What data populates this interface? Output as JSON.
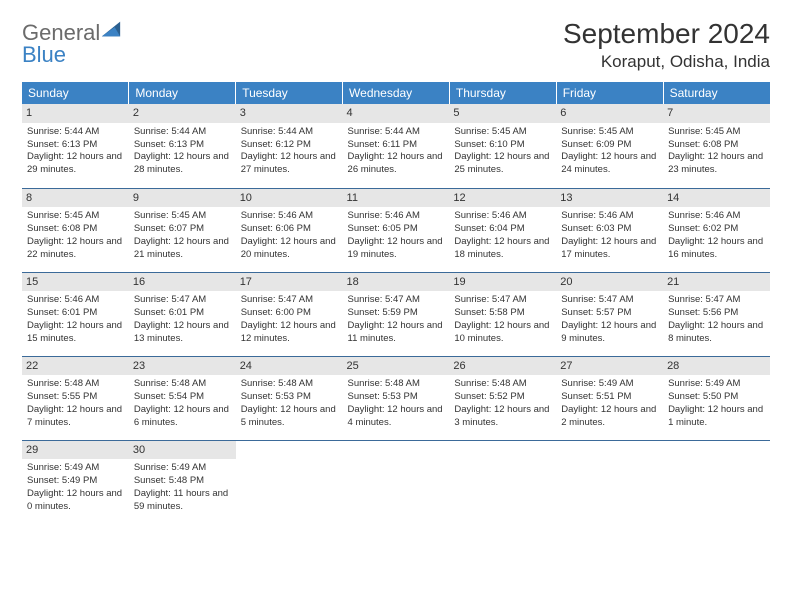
{
  "logo": {
    "word1": "General",
    "word2": "Blue"
  },
  "title": "September 2024",
  "location": "Koraput, Odisha, India",
  "colors": {
    "header_bg": "#3b82c4",
    "header_text": "#ffffff",
    "daynum_bg": "#e6e6e6",
    "border": "#3b6a99",
    "logo_gray": "#6b6b6b",
    "logo_blue": "#3b82c4"
  },
  "daysOfWeek": [
    "Sunday",
    "Monday",
    "Tuesday",
    "Wednesday",
    "Thursday",
    "Friday",
    "Saturday"
  ],
  "days": [
    {
      "n": "1",
      "sunrise": "5:44 AM",
      "sunset": "6:13 PM",
      "dl": "12 hours and 29 minutes."
    },
    {
      "n": "2",
      "sunrise": "5:44 AM",
      "sunset": "6:13 PM",
      "dl": "12 hours and 28 minutes."
    },
    {
      "n": "3",
      "sunrise": "5:44 AM",
      "sunset": "6:12 PM",
      "dl": "12 hours and 27 minutes."
    },
    {
      "n": "4",
      "sunrise": "5:44 AM",
      "sunset": "6:11 PM",
      "dl": "12 hours and 26 minutes."
    },
    {
      "n": "5",
      "sunrise": "5:45 AM",
      "sunset": "6:10 PM",
      "dl": "12 hours and 25 minutes."
    },
    {
      "n": "6",
      "sunrise": "5:45 AM",
      "sunset": "6:09 PM",
      "dl": "12 hours and 24 minutes."
    },
    {
      "n": "7",
      "sunrise": "5:45 AM",
      "sunset": "6:08 PM",
      "dl": "12 hours and 23 minutes."
    },
    {
      "n": "8",
      "sunrise": "5:45 AM",
      "sunset": "6:08 PM",
      "dl": "12 hours and 22 minutes."
    },
    {
      "n": "9",
      "sunrise": "5:45 AM",
      "sunset": "6:07 PM",
      "dl": "12 hours and 21 minutes."
    },
    {
      "n": "10",
      "sunrise": "5:46 AM",
      "sunset": "6:06 PM",
      "dl": "12 hours and 20 minutes."
    },
    {
      "n": "11",
      "sunrise": "5:46 AM",
      "sunset": "6:05 PM",
      "dl": "12 hours and 19 minutes."
    },
    {
      "n": "12",
      "sunrise": "5:46 AM",
      "sunset": "6:04 PM",
      "dl": "12 hours and 18 minutes."
    },
    {
      "n": "13",
      "sunrise": "5:46 AM",
      "sunset": "6:03 PM",
      "dl": "12 hours and 17 minutes."
    },
    {
      "n": "14",
      "sunrise": "5:46 AM",
      "sunset": "6:02 PM",
      "dl": "12 hours and 16 minutes."
    },
    {
      "n": "15",
      "sunrise": "5:46 AM",
      "sunset": "6:01 PM",
      "dl": "12 hours and 15 minutes."
    },
    {
      "n": "16",
      "sunrise": "5:47 AM",
      "sunset": "6:01 PM",
      "dl": "12 hours and 13 minutes."
    },
    {
      "n": "17",
      "sunrise": "5:47 AM",
      "sunset": "6:00 PM",
      "dl": "12 hours and 12 minutes."
    },
    {
      "n": "18",
      "sunrise": "5:47 AM",
      "sunset": "5:59 PM",
      "dl": "12 hours and 11 minutes."
    },
    {
      "n": "19",
      "sunrise": "5:47 AM",
      "sunset": "5:58 PM",
      "dl": "12 hours and 10 minutes."
    },
    {
      "n": "20",
      "sunrise": "5:47 AM",
      "sunset": "5:57 PM",
      "dl": "12 hours and 9 minutes."
    },
    {
      "n": "21",
      "sunrise": "5:47 AM",
      "sunset": "5:56 PM",
      "dl": "12 hours and 8 minutes."
    },
    {
      "n": "22",
      "sunrise": "5:48 AM",
      "sunset": "5:55 PM",
      "dl": "12 hours and 7 minutes."
    },
    {
      "n": "23",
      "sunrise": "5:48 AM",
      "sunset": "5:54 PM",
      "dl": "12 hours and 6 minutes."
    },
    {
      "n": "24",
      "sunrise": "5:48 AM",
      "sunset": "5:53 PM",
      "dl": "12 hours and 5 minutes."
    },
    {
      "n": "25",
      "sunrise": "5:48 AM",
      "sunset": "5:53 PM",
      "dl": "12 hours and 4 minutes."
    },
    {
      "n": "26",
      "sunrise": "5:48 AM",
      "sunset": "5:52 PM",
      "dl": "12 hours and 3 minutes."
    },
    {
      "n": "27",
      "sunrise": "5:49 AM",
      "sunset": "5:51 PM",
      "dl": "12 hours and 2 minutes."
    },
    {
      "n": "28",
      "sunrise": "5:49 AM",
      "sunset": "5:50 PM",
      "dl": "12 hours and 1 minute."
    },
    {
      "n": "29",
      "sunrise": "5:49 AM",
      "sunset": "5:49 PM",
      "dl": "12 hours and 0 minutes."
    },
    {
      "n": "30",
      "sunrise": "5:49 AM",
      "sunset": "5:48 PM",
      "dl": "11 hours and 59 minutes."
    }
  ],
  "labels": {
    "sunrise": "Sunrise:",
    "sunset": "Sunset:",
    "daylight": "Daylight:"
  }
}
